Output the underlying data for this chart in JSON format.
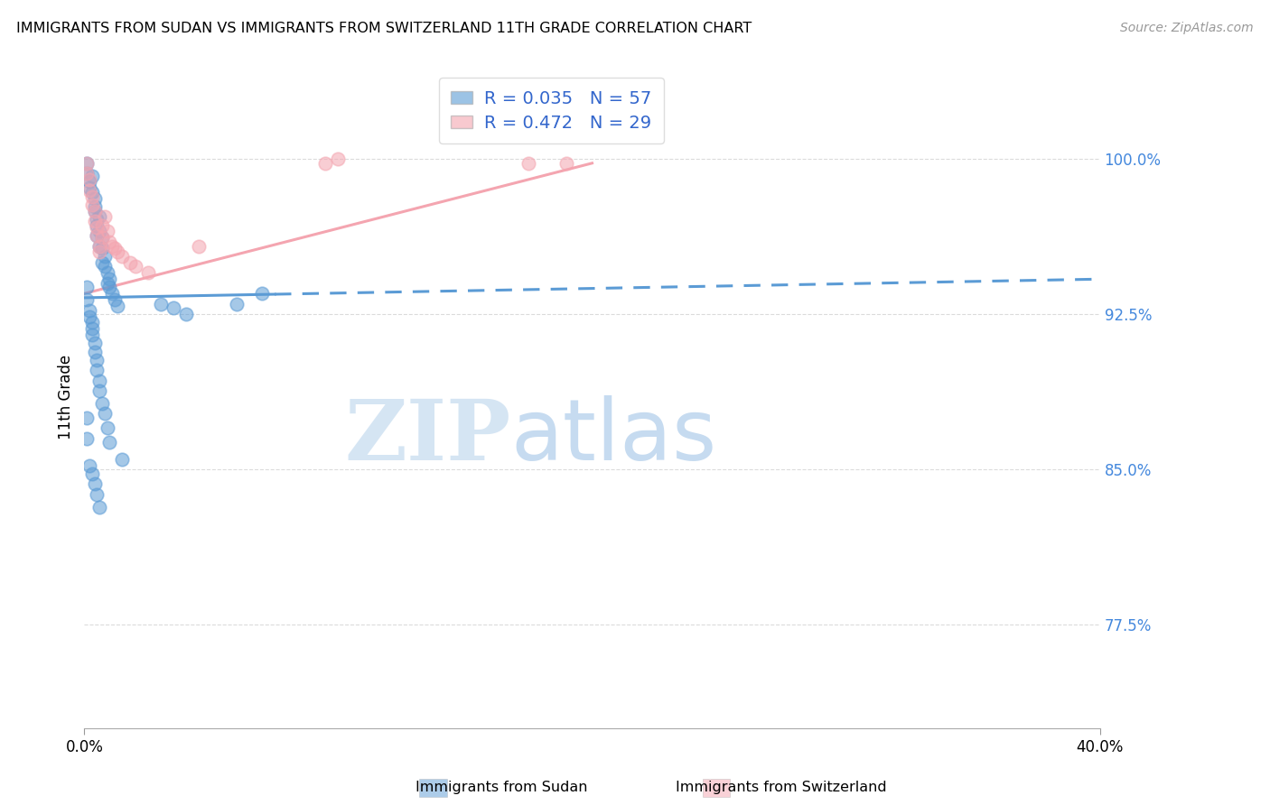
{
  "title": "IMMIGRANTS FROM SUDAN VS IMMIGRANTS FROM SWITZERLAND 11TH GRADE CORRELATION CHART",
  "source": "Source: ZipAtlas.com",
  "ylabel": "11th Grade",
  "ytick_vals": [
    0.775,
    0.85,
    0.925,
    1.0
  ],
  "ytick_labels": [
    "77.5%",
    "85.0%",
    "92.5%",
    "100.0%"
  ],
  "xlim": [
    0.0,
    0.4
  ],
  "ylim": [
    0.725,
    1.045
  ],
  "background_color": "#ffffff",
  "grid_color": "#cccccc",
  "watermark_zip": "ZIP",
  "watermark_atlas": "atlas",
  "sudan_color": "#5b9bd5",
  "switzerland_color": "#f4a5b0",
  "sudan_R": 0.035,
  "sudan_N": 57,
  "switzerland_R": 0.472,
  "switzerland_N": 29,
  "sudan_line_x0": 0.0,
  "sudan_line_x_solid_end": 0.075,
  "sudan_line_x1": 0.4,
  "sudan_line_y0": 0.933,
  "sudan_line_y1": 0.942,
  "swiss_line_x0": 0.0,
  "swiss_line_x1": 0.2,
  "swiss_line_y0": 0.935,
  "swiss_line_y1": 0.998,
  "sudan_points_x": [
    0.001,
    0.001,
    0.002,
    0.002,
    0.003,
    0.003,
    0.004,
    0.004,
    0.004,
    0.005,
    0.005,
    0.005,
    0.006,
    0.006,
    0.006,
    0.007,
    0.007,
    0.007,
    0.008,
    0.008,
    0.009,
    0.009,
    0.01,
    0.01,
    0.011,
    0.012,
    0.013,
    0.001,
    0.001,
    0.002,
    0.002,
    0.003,
    0.003,
    0.003,
    0.004,
    0.004,
    0.005,
    0.005,
    0.006,
    0.006,
    0.007,
    0.008,
    0.009,
    0.01,
    0.015,
    0.001,
    0.001,
    0.002,
    0.003,
    0.004,
    0.005,
    0.006,
    0.03,
    0.035,
    0.04,
    0.06,
    0.07
  ],
  "sudan_points_y": [
    0.998,
    0.993,
    0.989,
    0.986,
    0.992,
    0.984,
    0.981,
    0.977,
    0.975,
    0.971,
    0.968,
    0.963,
    0.972,
    0.965,
    0.958,
    0.962,
    0.957,
    0.95,
    0.953,
    0.948,
    0.945,
    0.94,
    0.942,
    0.938,
    0.935,
    0.932,
    0.929,
    0.938,
    0.932,
    0.927,
    0.924,
    0.921,
    0.918,
    0.915,
    0.911,
    0.907,
    0.903,
    0.898,
    0.893,
    0.888,
    0.882,
    0.877,
    0.87,
    0.863,
    0.855,
    0.875,
    0.865,
    0.852,
    0.848,
    0.843,
    0.838,
    0.832,
    0.93,
    0.928,
    0.925,
    0.93,
    0.935
  ],
  "switzerland_points_x": [
    0.001,
    0.001,
    0.002,
    0.002,
    0.003,
    0.003,
    0.004,
    0.004,
    0.005,
    0.005,
    0.006,
    0.006,
    0.007,
    0.007,
    0.008,
    0.009,
    0.01,
    0.011,
    0.012,
    0.013,
    0.015,
    0.018,
    0.02,
    0.025,
    0.045,
    0.1,
    0.175,
    0.095,
    0.19
  ],
  "switzerland_points_y": [
    0.998,
    0.993,
    0.99,
    0.985,
    0.982,
    0.978,
    0.975,
    0.97,
    0.967,
    0.963,
    0.958,
    0.955,
    0.968,
    0.962,
    0.972,
    0.965,
    0.96,
    0.958,
    0.957,
    0.955,
    0.953,
    0.95,
    0.948,
    0.945,
    0.958,
    1.0,
    0.998,
    0.998,
    0.998
  ]
}
